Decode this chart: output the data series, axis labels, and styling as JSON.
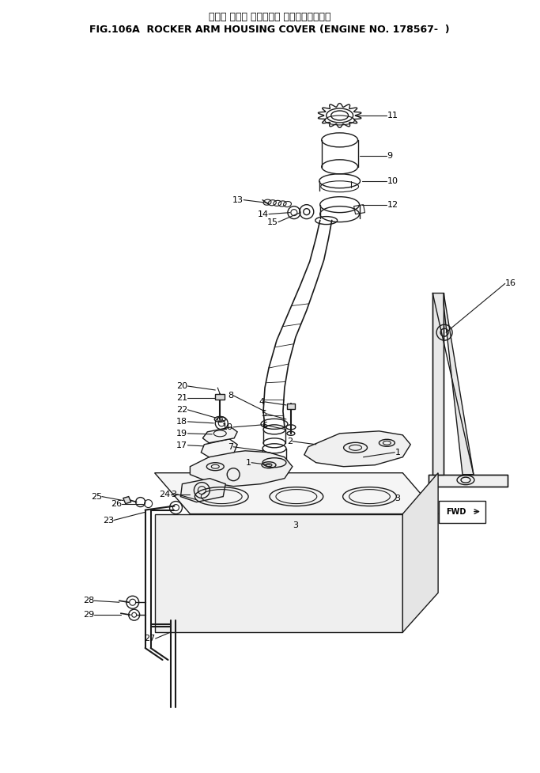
{
  "title_jp": "ロッカ アーム ハウジング カバー　適用号機",
  "title_en": "FIG.106A  ROCKER ARM HOUSING COVER (ENGINE NO. 178567-  )",
  "bg_color": "#ffffff",
  "line_color": "#1a1a1a",
  "title_jp_fontsize": 9,
  "title_en_fontsize": 9,
  "label_fontsize": 8
}
